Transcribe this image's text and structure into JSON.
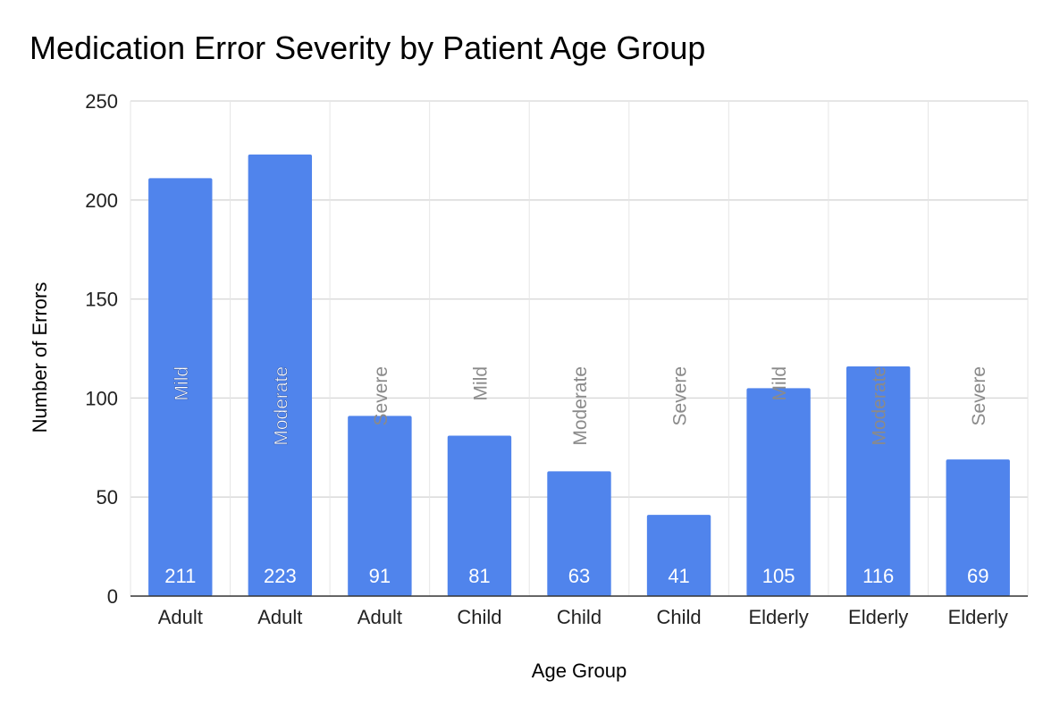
{
  "chart_data": {
    "type": "bar",
    "title": "Medication Error Severity by Patient Age Group",
    "xlabel": "Age Group",
    "ylabel": "Number of Errors",
    "ylim": [
      0,
      250
    ],
    "yticks": [
      0,
      50,
      100,
      150,
      200,
      250
    ],
    "grid": true,
    "legend": "none",
    "categories": [
      "Adult",
      "Adult",
      "Adult",
      "Child",
      "Child",
      "Child",
      "Elderly",
      "Elderly",
      "Elderly"
    ],
    "severity": [
      "Mild",
      "Moderate",
      "Severe",
      "Mild",
      "Moderate",
      "Severe",
      "Mild",
      "Moderate",
      "Severe"
    ],
    "values": [
      211,
      223,
      91,
      81,
      63,
      41,
      105,
      116,
      69
    ],
    "colors": {
      "bar": "#5084ec",
      "grid": "#d6d6d6",
      "axis": "#333333",
      "severity_inside": "#ffffff",
      "severity_outside": "#8a8a8a"
    }
  }
}
